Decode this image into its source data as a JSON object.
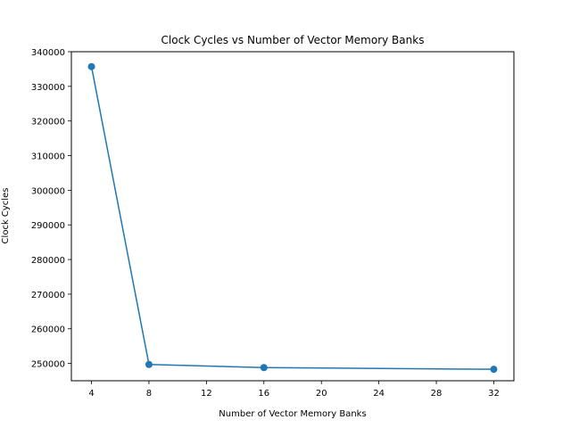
{
  "chart_data": {
    "type": "line",
    "title": "Clock Cycles vs Number of Vector Memory Banks",
    "xlabel": "Number of Vector Memory Banks",
    "ylabel": "Clock Cycles",
    "xlim": [
      2.6,
      33.4
    ],
    "ylim": [
      245000,
      340000
    ],
    "xticks": [
      4,
      8,
      12,
      16,
      20,
      24,
      28,
      32
    ],
    "yticks": [
      250000,
      260000,
      270000,
      280000,
      290000,
      300000,
      310000,
      320000,
      330000,
      340000
    ],
    "grid": false,
    "series": [
      {
        "x": [
          4,
          8,
          16,
          32
        ],
        "y": [
          335700,
          249700,
          248800,
          248300
        ],
        "color": "#1f77b4",
        "marker": "circle"
      }
    ]
  }
}
